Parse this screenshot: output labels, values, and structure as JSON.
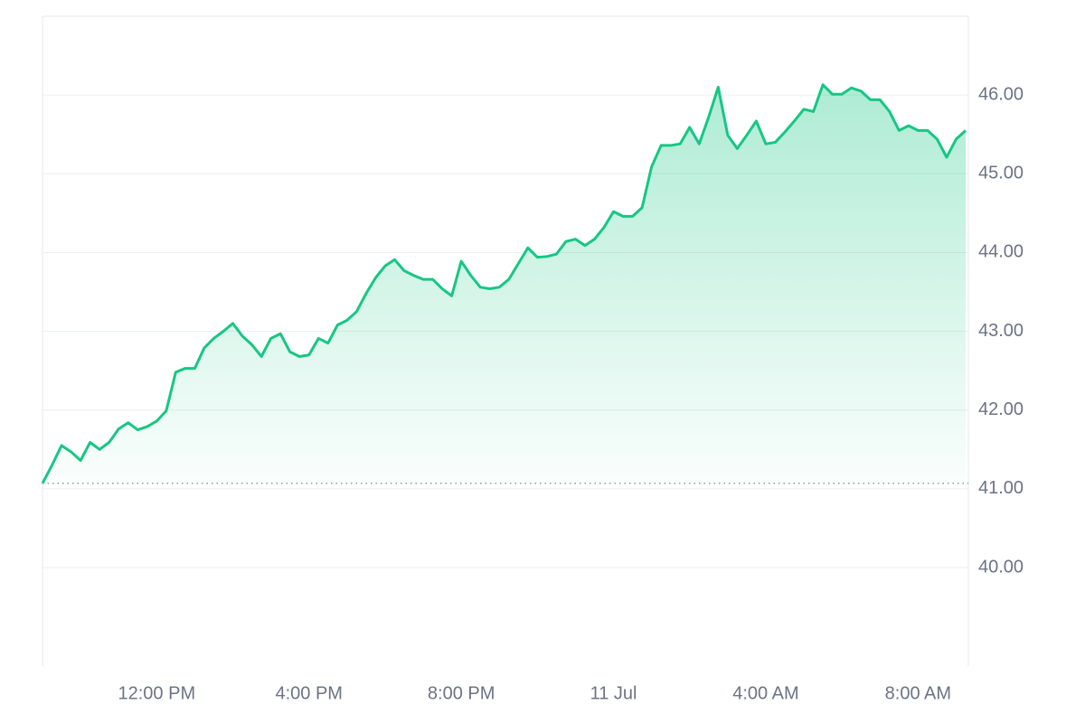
{
  "chart_data": {
    "type": "line",
    "categories": [
      null,
      null,
      null,
      null,
      null,
      null,
      null,
      null,
      null,
      null,
      null,
      null,
      "12:00 PM",
      null,
      null,
      null,
      null,
      null,
      null,
      null,
      null,
      null,
      null,
      null,
      null,
      null,
      null,
      null,
      "4:00 PM",
      null,
      null,
      null,
      null,
      null,
      null,
      null,
      null,
      null,
      null,
      null,
      null,
      null,
      null,
      null,
      "8:00 PM",
      null,
      null,
      null,
      null,
      null,
      null,
      null,
      null,
      null,
      null,
      null,
      null,
      null,
      null,
      null,
      "11 Jul",
      null,
      null,
      null,
      null,
      null,
      null,
      null,
      null,
      null,
      null,
      null,
      null,
      null,
      null,
      null,
      "4:00 AM",
      null,
      null,
      null,
      null,
      null,
      null,
      null,
      null,
      null,
      null,
      null,
      null,
      null,
      null,
      null,
      "8:00 AM",
      null,
      null,
      null,
      null,
      null
    ],
    "values": [
      41.07,
      41.3,
      41.55,
      41.47,
      41.36,
      41.59,
      41.5,
      41.59,
      41.76,
      41.84,
      41.75,
      41.79,
      41.86,
      41.99,
      42.48,
      42.53,
      42.53,
      42.79,
      42.91,
      43.0,
      43.1,
      42.94,
      42.83,
      42.68,
      42.91,
      42.97,
      42.74,
      42.68,
      42.7,
      42.91,
      42.85,
      43.08,
      43.14,
      43.25,
      43.48,
      43.68,
      43.83,
      43.91,
      43.77,
      43.71,
      43.66,
      43.66,
      43.54,
      43.45,
      43.89,
      43.71,
      43.56,
      43.54,
      43.56,
      43.66,
      43.86,
      44.06,
      43.94,
      43.95,
      43.98,
      44.14,
      44.17,
      44.09,
      44.17,
      44.32,
      44.52,
      44.46,
      44.46,
      44.57,
      45.09,
      45.36,
      45.36,
      45.38,
      45.59,
      45.38,
      45.72,
      46.1,
      45.49,
      45.32,
      45.49,
      45.67,
      45.38,
      45.4,
      45.53,
      45.67,
      45.82,
      45.79,
      46.13,
      46.01,
      46.01,
      46.09,
      46.05,
      45.94,
      45.94,
      45.79,
      45.55,
      45.61,
      45.55,
      45.55,
      45.44,
      45.21,
      45.44,
      45.55
    ],
    "color": "#16c784",
    "ylim": [
      38.75,
      47.0
    ],
    "yticks": [
      {
        "value": 40,
        "label": "40.00"
      },
      {
        "value": 41,
        "label": "41.00"
      },
      {
        "value": 42,
        "label": "42.00"
      },
      {
        "value": 43,
        "label": "43.00"
      },
      {
        "value": 44,
        "label": "44.00"
      },
      {
        "value": 45,
        "label": "45.00"
      },
      {
        "value": 46,
        "label": "46.00"
      }
    ],
    "grid": true
  }
}
